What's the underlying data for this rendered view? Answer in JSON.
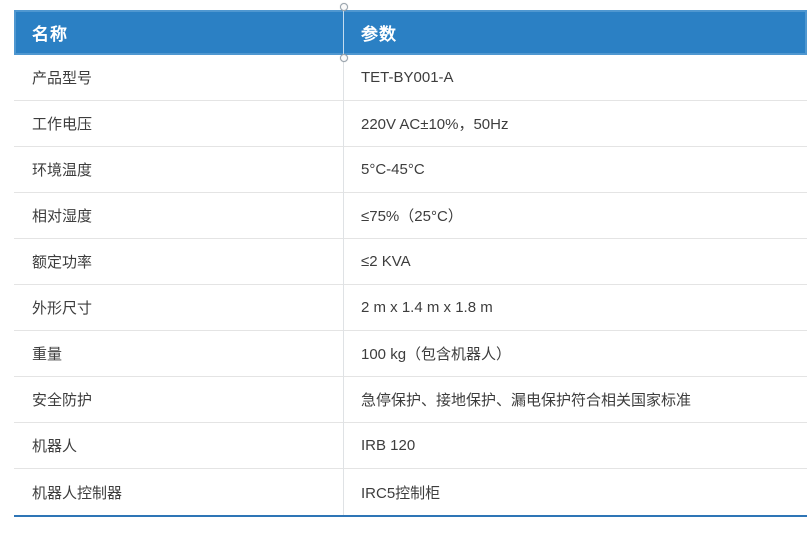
{
  "table": {
    "columns": [
      {
        "label": "名称"
      },
      {
        "label": "参数"
      }
    ],
    "rows": [
      {
        "name": "产品型号",
        "value": "TET-BY001-A"
      },
      {
        "name": "工作电压",
        "value": "220V AC±10%，50Hz"
      },
      {
        "name": "环境温度",
        "value": "5°C-45°C"
      },
      {
        "name": "相对湿度",
        "value": "≤75%（25°C）"
      },
      {
        "name": "额定功率",
        "value": "≤2 KVA"
      },
      {
        "name": "外形尺寸",
        "value": "2 m x 1.4 m x 1.8 m"
      },
      {
        "name": "重量",
        "value": "100 kg（包含机器人）"
      },
      {
        "name": "安全防护",
        "value": "急停保护、接地保护、漏电保护符合相关国家标准"
      },
      {
        "name": "机器人",
        "value": "IRB 120"
      },
      {
        "name": "机器人控制器",
        "value": "IRC5控制柜"
      }
    ]
  },
  "colors": {
    "header_bg": "#2b80c4",
    "header_text": "#ffffff",
    "body_text": "#3d3d3d",
    "row_divider": "#e4e4e4",
    "column_divider": "#dfe2e5",
    "bottom_border": "#2e75b6"
  }
}
